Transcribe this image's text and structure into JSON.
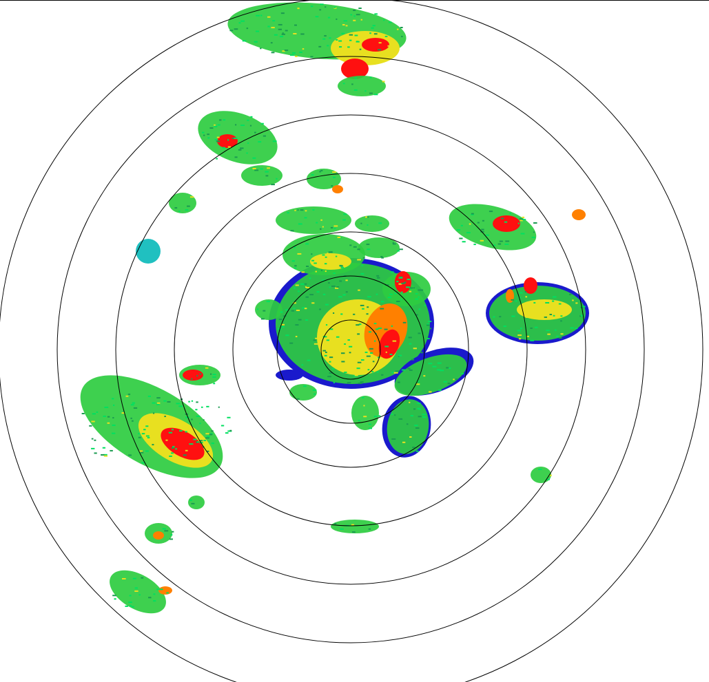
{
  "radar": {
    "range_ring_count": 7,
    "colors": {
      "background": "#ffffff",
      "ring": "#000000",
      "weak_edge": "#1a1acc",
      "light": "#2ecc40",
      "light_alt": "#00e060",
      "moderate": "#e8e020",
      "heavy": "#ff8000",
      "intense": "#ff1010",
      "cyan": "#20c0c0"
    }
  }
}
